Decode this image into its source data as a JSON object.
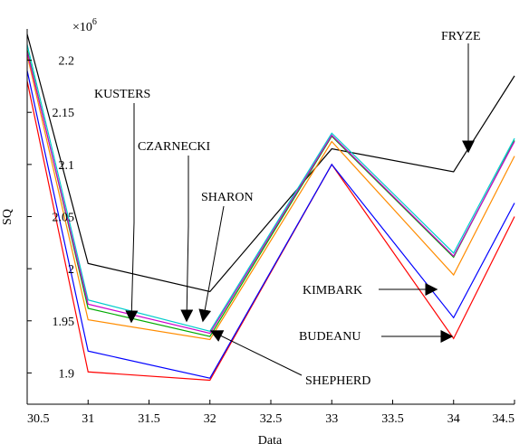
{
  "chart_data": {
    "type": "line",
    "x": [
      30.5,
      31,
      32,
      33,
      34,
      34.5
    ],
    "xlabel": "Data",
    "ylabel": "SQ",
    "y_multiplier": "×10",
    "y_exponent": "6",
    "xlim": [
      30.5,
      34.5
    ],
    "ylim": [
      1.87,
      2.23
    ],
    "xticks": [
      "30.5",
      "31",
      "31.5",
      "32",
      "32.5",
      "33",
      "33.5",
      "34",
      "34.5"
    ],
    "yticks": [
      "1.9",
      "1.95",
      "2",
      "2.05",
      "2.1",
      "2.15",
      "2.2"
    ],
    "grid": false,
    "series": [
      {
        "color": "#ff0000",
        "values": [
          2.18,
          1.901,
          1.893,
          2.1,
          1.933,
          2.05
        ]
      },
      {
        "color": "#0000ff",
        "values": [
          2.19,
          1.921,
          1.895,
          2.1,
          1.953,
          2.063
        ]
      },
      {
        "color": "#000000",
        "values": [
          2.225,
          2.005,
          1.978,
          2.115,
          2.093,
          2.185
        ]
      },
      {
        "color": "#ff8c00",
        "values": [
          2.205,
          1.951,
          1.932,
          2.122,
          1.994,
          2.108
        ]
      },
      {
        "color": "#00aa00",
        "values": [
          2.21,
          1.962,
          1.935,
          2.127,
          2.011,
          2.123
        ]
      },
      {
        "color": "#00cccc",
        "values": [
          2.215,
          1.97,
          1.94,
          2.13,
          2.015,
          2.125
        ]
      },
      {
        "color": "#cc00cc",
        "values": [
          2.208,
          1.966,
          1.938,
          2.128,
          2.012,
          2.122
        ]
      }
    ],
    "annotations": [
      {
        "label": "FRYZE",
        "target": [
          34.1,
          2.113
        ],
        "anchor": "top-right",
        "arrow": "down"
      },
      {
        "label": "KUSTERS",
        "target": [
          31.04,
          1.945
        ],
        "anchor": "top-left",
        "arrow": "down"
      },
      {
        "label": "CZARNECKI",
        "target": [
          31.57,
          1.948
        ],
        "anchor": "top-left",
        "arrow": "down"
      },
      {
        "label": "SHARON",
        "target": [
          31.72,
          1.948
        ],
        "anchor": "top-center",
        "arrow": "down"
      },
      {
        "label": "KIMBARK",
        "target": [
          33.85,
          1.975
        ],
        "anchor": "right",
        "arrow": "right"
      },
      {
        "label": "BUDEANU",
        "target": [
          33.85,
          1.933
        ],
        "anchor": "right",
        "arrow": "right"
      },
      {
        "label": "SHEPHERD",
        "target": [
          31.85,
          1.94
        ],
        "anchor": "bottom-center",
        "arrow": "up-left"
      }
    ]
  }
}
